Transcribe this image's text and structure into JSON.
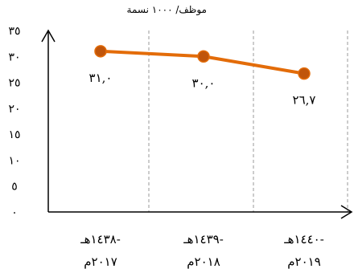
{
  "chart_data": {
    "type": "line",
    "title": "",
    "xlabel": "",
    "ylabel": "موظف/ ١٠٠٠ نسمة",
    "ylim": [
      0,
      35
    ],
    "ytick_values": [
      0,
      5,
      10,
      15,
      20,
      25,
      30,
      35
    ],
    "ytick_labels": [
      "٠",
      "٥",
      "١٠",
      "١٥",
      "٢٠",
      "٢٥",
      "٣٠",
      "٣٥"
    ],
    "grid": "vertical-dashed",
    "categories": [
      {
        "line1": "-١٤٣٨هـ",
        "line2": "٢٠١٧م"
      },
      {
        "line1": "-١٤٣٩هـ",
        "line2": "٢٠١٨م"
      },
      {
        "line1": "-١٤٤٠هـ",
        "line2": "٢٠١٩م"
      }
    ],
    "values": [
      31.0,
      30.0,
      26.7
    ],
    "data_labels": [
      "٣١,٠",
      "٣٠,٠",
      "٢٦,٧"
    ],
    "color": "#E36C09",
    "marker_fill": "#C0550A"
  }
}
